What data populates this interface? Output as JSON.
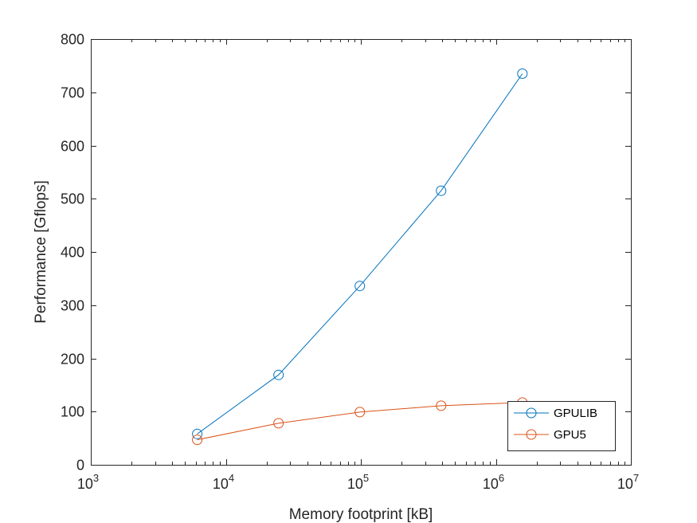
{
  "chart_data": {
    "type": "line",
    "title": "",
    "xlabel": "Memory footprint [kB]",
    "ylabel": "Performance [Gflops]",
    "x_scale": "log",
    "xlim": [
      1000,
      10000000
    ],
    "ylim": [
      0,
      800
    ],
    "grid": false,
    "legend_position": "bottom-right",
    "x_ticks": [
      {
        "value": 1000,
        "base": "10",
        "exp": "3"
      },
      {
        "value": 10000,
        "base": "10",
        "exp": "4"
      },
      {
        "value": 100000,
        "base": "10",
        "exp": "5"
      },
      {
        "value": 1000000,
        "base": "10",
        "exp": "6"
      },
      {
        "value": 10000000,
        "base": "10",
        "exp": "7"
      }
    ],
    "y_ticks": [
      {
        "value": 0,
        "label": "0"
      },
      {
        "value": 100,
        "label": "100"
      },
      {
        "value": 200,
        "label": "200"
      },
      {
        "value": 300,
        "label": "300"
      },
      {
        "value": 400,
        "label": "400"
      },
      {
        "value": 500,
        "label": "500"
      },
      {
        "value": 600,
        "label": "600"
      },
      {
        "value": 700,
        "label": "700"
      },
      {
        "value": 800,
        "label": "800"
      }
    ],
    "x": [
      6144,
      24576,
      98304,
      393216,
      1572864
    ],
    "series": [
      {
        "name": "GPULIB",
        "color": "#0072BD",
        "marker": "circle",
        "values": [
          58,
          169,
          336,
          515,
          735
        ]
      },
      {
        "name": "GPU5",
        "color": "#D95319",
        "marker": "circle",
        "values": [
          47,
          78,
          99,
          111,
          117
        ]
      }
    ]
  }
}
